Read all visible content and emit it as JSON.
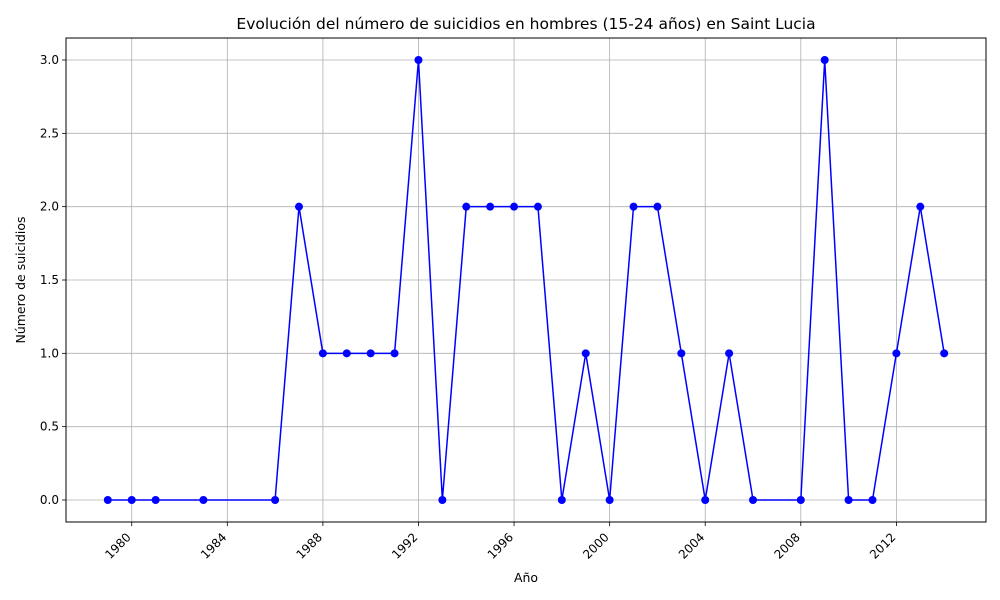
{
  "chart_data": {
    "type": "line",
    "title": "Evolución del número de suicidios en hombres (15-24 años) en Saint Lucia",
    "xlabel": "Año",
    "ylabel": "Número de suicidios",
    "grid": true,
    "xlim": [
      1977.25,
      2015.75
    ],
    "ylim": [
      -0.15,
      3.15
    ],
    "x_ticks": [
      1980,
      1984,
      1988,
      1992,
      1996,
      2000,
      2004,
      2008,
      2012
    ],
    "y_ticks": [
      0.0,
      0.5,
      1.0,
      1.5,
      2.0,
      2.5,
      3.0
    ],
    "y_tick_labels": [
      "0.0",
      "0.5",
      "1.0",
      "1.5",
      "2.0",
      "2.5",
      "3.0"
    ],
    "line_color": "#0000ff",
    "series": [
      {
        "x": [
          1979,
          1980,
          1981,
          1983,
          1986,
          1987,
          1988,
          1989,
          1990,
          1991,
          1992,
          1993,
          1994,
          1995,
          1996,
          1997,
          1998,
          1999,
          2000,
          2001,
          2002,
          2003,
          2004,
          2005,
          2006,
          2008,
          2009,
          2010,
          2011,
          2012,
          2013,
          2014
        ],
        "y": [
          0,
          0,
          0,
          0,
          0,
          2,
          1,
          1,
          1,
          1,
          3,
          0,
          2,
          2,
          2,
          2,
          0,
          1,
          0,
          2,
          2,
          1,
          0,
          1,
          0,
          0,
          3,
          0,
          0,
          1,
          2,
          1
        ]
      }
    ]
  }
}
